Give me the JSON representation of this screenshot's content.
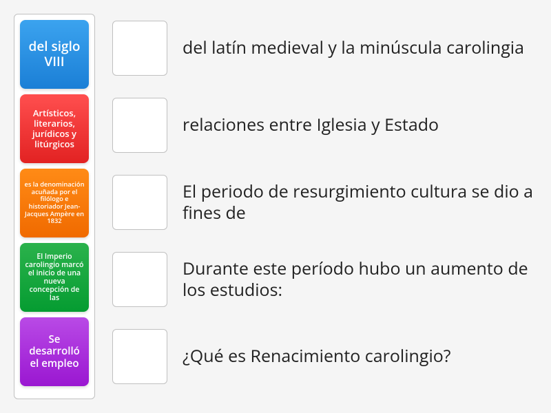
{
  "tiles": [
    {
      "text": "del siglo VIII",
      "bg": "linear-gradient(to bottom, #3ba3ef, #1b7fd6)",
      "fontSize": "19px"
    },
    {
      "text": "Artísticos, literarios, jurídicos y litúrgicos",
      "bg": "linear-gradient(to bottom, #ff4f4f, #e22222)",
      "fontSize": "13px"
    },
    {
      "text": "es la denominación acuñada por el filólogo e historiador Jean-Jacques Ampère en 1832",
      "bg": "linear-gradient(to bottom, #ff8b16, #f06a00)",
      "fontSize": "9.3px"
    },
    {
      "text": "El Imperio carolingio marcó el inicio de una nueva concepción de las",
      "bg": "linear-gradient(to bottom, #2bb24c, #059c31)",
      "fontSize": "10.5px"
    },
    {
      "text": "Se desarrolló el empleo",
      "bg": "linear-gradient(to bottom, #b94ae6, #9a17d1)",
      "fontSize": "15px"
    }
  ],
  "answers": [
    "del latín medieval y la minúscula carolingia",
    "relaciones entre Iglesia y Estado",
    "El periodo de resurgimiento cultura se dio a fines de",
    "Durante este período hubo un aumento de los estudios:",
    "¿Qué es Renacimiento carolingio?"
  ]
}
